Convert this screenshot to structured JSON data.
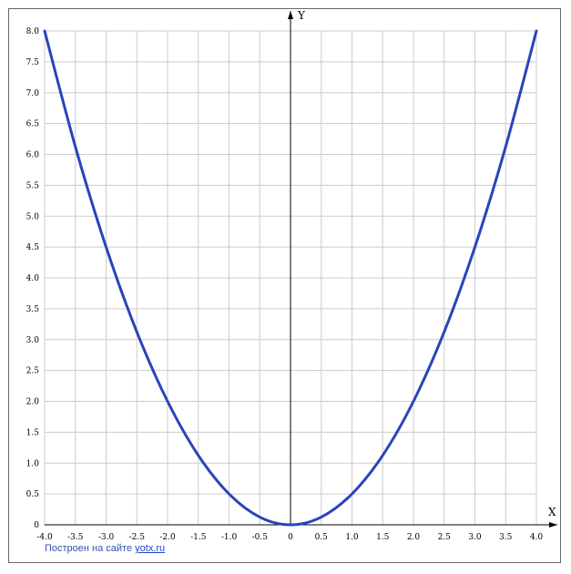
{
  "chart_data": {
    "type": "line",
    "title": "",
    "xlabel": "X",
    "ylabel": "Y",
    "xlim": [
      -4.0,
      4.0
    ],
    "ylim": [
      0,
      8.0
    ],
    "x_ticks": [
      "-4.0",
      "-3.5",
      "-3.0",
      "-2.5",
      "-2.0",
      "-1.5",
      "-1.0",
      "-0.5",
      "0",
      "0.5",
      "1.0",
      "1.5",
      "2.0",
      "2.5",
      "3.0",
      "3.5",
      "4.0"
    ],
    "y_ticks": [
      "0",
      "0.5",
      "1.0",
      "1.5",
      "2.0",
      "2.5",
      "3.0",
      "3.5",
      "4.0",
      "4.5",
      "5.0",
      "5.5",
      "6.0",
      "6.5",
      "7.0",
      "7.5",
      "8.0"
    ],
    "grid": true,
    "series": [
      {
        "color": "#2a44b8",
        "x": [
          -4.0,
          -3.5,
          -3.0,
          -2.5,
          -2.0,
          -1.5,
          -1.0,
          -0.5,
          0,
          0.5,
          1.0,
          1.5,
          2.0,
          2.5,
          3.0,
          3.5,
          4.0
        ],
        "y": [
          8.0,
          6.125,
          4.5,
          3.125,
          2.0,
          1.125,
          0.5,
          0.125,
          0,
          0.125,
          0.5,
          1.125,
          2.0,
          3.125,
          4.5,
          6.125,
          8.0
        ]
      }
    ]
  },
  "credit": {
    "text": "Построен на сайте ",
    "link": "yotx.ru"
  }
}
